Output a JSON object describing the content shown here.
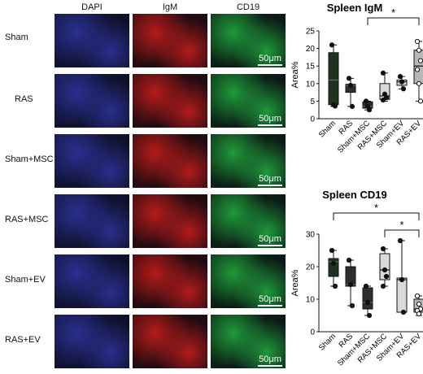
{
  "panel": {
    "column_headers": [
      "DAPI",
      "IgM",
      "CD19"
    ],
    "row_labels": [
      "Sham",
      "RAS",
      "Sham+MSC",
      "RAS+MSC",
      "Sham+EV",
      "RAS+EV"
    ],
    "scale_bar_label": "50μm",
    "channel_colors": {
      "DAPI": "#2a2f8f",
      "IgM": "#b41b1b",
      "CD19": "#1f9a3a"
    }
  },
  "chart_data": [
    {
      "type": "box",
      "title": "Spleen IgM",
      "ylabel": "Area%",
      "ylim": [
        0,
        25
      ],
      "yticks": [
        0,
        5,
        10,
        15,
        20,
        25
      ],
      "categories": [
        "Sham",
        "RAS",
        "Sham+MSC",
        "RAS+MSC",
        "Sham+EV",
        "RAS+EV"
      ],
      "boxes": [
        {
          "min": 3.5,
          "q1": 4,
          "median": 11,
          "q3": 18.8,
          "max": 21,
          "fill": "#1f3320",
          "point_marker": "filled",
          "points": [
            21,
            4,
            3.6
          ]
        },
        {
          "min": 3.5,
          "q1": 7.5,
          "median": 9.5,
          "q3": 9.8,
          "max": 11.5,
          "fill": "#2e2e2e",
          "point_marker": "filled",
          "points": [
            11.5,
            9.5,
            3.5
          ]
        },
        {
          "min": 2.5,
          "q1": 3,
          "median": 3.5,
          "q3": 4.8,
          "max": 5,
          "fill": "#2e2e2e",
          "point_marker": "filled",
          "points": [
            5,
            3.5,
            2.5
          ]
        },
        {
          "min": 5,
          "q1": 5.5,
          "median": 6.5,
          "q3": 10,
          "max": 13,
          "fill": "#d9d9d9",
          "point_marker": "filled",
          "points": [
            13,
            7,
            6,
            5.3
          ]
        },
        {
          "min": 8.5,
          "q1": 9.5,
          "median": 10.5,
          "q3": 11,
          "max": 12,
          "fill": "#d9d9d9",
          "point_marker": "filled",
          "points": [
            12,
            10.5,
            8.5
          ]
        },
        {
          "min": 5,
          "q1": 10,
          "median": 15,
          "q3": 19.5,
          "max": 22,
          "fill": "#b8b8b8",
          "point_marker": "open",
          "points": [
            22,
            19.5,
            16.5,
            14,
            10,
            5
          ]
        }
      ],
      "significance": [
        {
          "from": "Sham+MSC",
          "to": "RAS+EV",
          "label": "*"
        }
      ]
    },
    {
      "type": "box",
      "title": "Spleen CD19",
      "ylabel": "Area%",
      "ylim": [
        0,
        30
      ],
      "yticks": [
        0,
        10,
        20,
        30
      ],
      "categories": [
        "Sham",
        "RAS",
        "Sham+MSC",
        "RAS+MSC",
        "Sham+EV",
        "RAS+EV"
      ],
      "boxes": [
        {
          "min": 14,
          "q1": 17,
          "median": 21.5,
          "q3": 22.5,
          "max": 25,
          "fill": "#1f3320",
          "point_marker": "filled",
          "points": [
            25,
            21,
            14
          ]
        },
        {
          "min": 8,
          "q1": 14,
          "median": 14.5,
          "q3": 20,
          "max": 22,
          "fill": "#2e2e2e",
          "point_marker": "filled",
          "points": [
            22,
            14.5,
            8
          ]
        },
        {
          "min": 5,
          "q1": 7,
          "median": 9,
          "q3": 13.5,
          "max": 14,
          "fill": "#2e2e2e",
          "point_marker": "filled",
          "points": [
            14,
            9,
            5
          ]
        },
        {
          "min": 14,
          "q1": 16,
          "median": 19,
          "q3": 24,
          "max": 25.5,
          "fill": "#d9d9d9",
          "point_marker": "filled",
          "points": [
            25.5,
            19,
            17,
            14
          ]
        },
        {
          "min": 6,
          "q1": 6,
          "median": 16,
          "q3": 16.5,
          "max": 28,
          "fill": "#d9d9d9",
          "point_marker": "filled",
          "points": [
            28,
            16,
            6
          ]
        },
        {
          "min": 5,
          "q1": 6,
          "median": 7,
          "q3": 10,
          "max": 11,
          "fill": "#b8b8b8",
          "point_marker": "open",
          "points": [
            11,
            8.5,
            7,
            6.5,
            5.5
          ]
        }
      ],
      "significance": [
        {
          "from": "Sham",
          "to": "RAS+EV",
          "label": "*"
        },
        {
          "from": "RAS+MSC",
          "to": "RAS+EV",
          "label": "*"
        }
      ]
    }
  ]
}
